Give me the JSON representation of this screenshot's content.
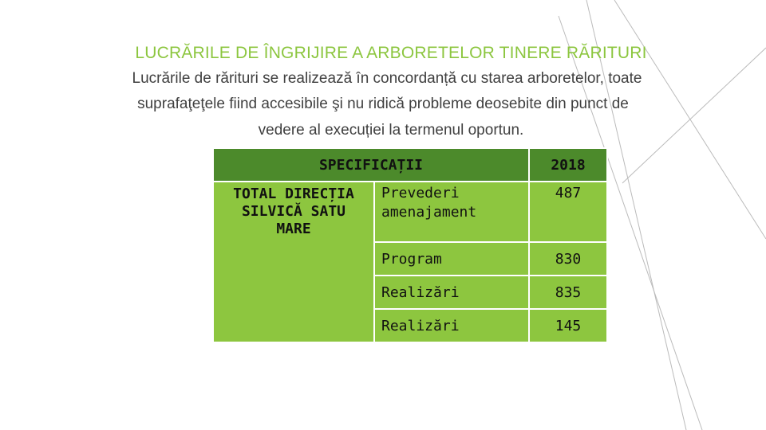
{
  "title": "LUCRĂRILE DE ÎNGRIJIRE A ARBORETELOR TINERE RĂRITURI",
  "paragraph": [
    "Lucrările de rărituri se realizează în concordanță cu starea arboretelor, toate",
    "suprafaţeţele fiind accesibile şi nu ridică probleme deosebite din punct de",
    "vedere al execuției la termenul oportun."
  ],
  "table": {
    "header": [
      "SPECIFICAȚII",
      "2018"
    ],
    "group": "TOTAL DIRECȚIA SILVICĂ SATU MARE",
    "rows": [
      [
        "Prevederi amenajament",
        "487"
      ],
      [
        "Program",
        "830"
      ],
      [
        "Realizări",
        "835"
      ],
      [
        "Realizări",
        "145"
      ]
    ]
  }
}
